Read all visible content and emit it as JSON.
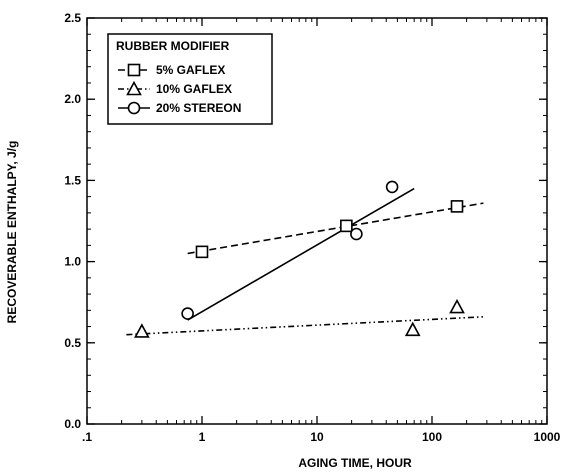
{
  "chart_data": {
    "type": "scatter",
    "title": "",
    "xlabel": "AGING TIME, HOUR",
    "ylabel": "RECOVERABLE ENTHALPY, J/g",
    "x_scale": "log",
    "xlim": [
      0.1,
      1000
    ],
    "ylim": [
      0.0,
      2.5
    ],
    "x_ticks": [
      0.1,
      1,
      10,
      100,
      1000
    ],
    "x_tick_labels": [
      ".1",
      "1",
      "10",
      "100",
      "1000"
    ],
    "y_ticks": [
      0.0,
      0.5,
      1.0,
      1.5,
      2.0,
      2.5
    ],
    "y_tick_labels": [
      "0.0",
      "0.5",
      "1.0",
      "1.5",
      "2.0",
      "2.5"
    ],
    "grid": false,
    "legend": {
      "title": "RUBBER MODIFIER",
      "placement": "top-left"
    },
    "series": [
      {
        "name": "5% GAFLEX",
        "marker": "square",
        "line_style": "dashed",
        "points": [
          [
            1.0,
            1.06
          ],
          [
            18,
            1.22
          ],
          [
            165,
            1.34
          ]
        ],
        "fit_line": [
          [
            0.75,
            1.05
          ],
          [
            280,
            1.36
          ]
        ]
      },
      {
        "name": "10% GAFLEX",
        "marker": "triangle",
        "line_style": "dash-dot-dot",
        "points": [
          [
            0.3,
            0.57
          ],
          [
            68,
            0.58
          ],
          [
            165,
            0.72
          ]
        ],
        "fit_line": [
          [
            0.22,
            0.55
          ],
          [
            280,
            0.66
          ]
        ]
      },
      {
        "name": "20% STEREON",
        "marker": "circle",
        "line_style": "solid",
        "points": [
          [
            0.75,
            0.68
          ],
          [
            22,
            1.17
          ],
          [
            45,
            1.46
          ]
        ],
        "fit_line": [
          [
            0.75,
            0.64
          ],
          [
            70,
            1.45
          ]
        ]
      }
    ]
  }
}
